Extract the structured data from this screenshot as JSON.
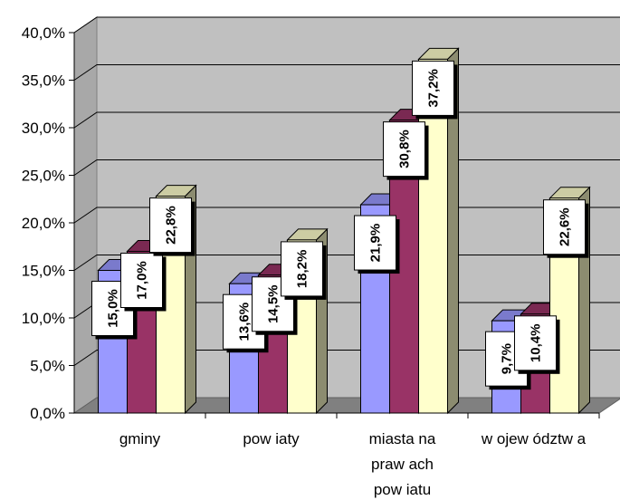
{
  "chart_data": {
    "type": "bar",
    "style": "3d-clustered-column",
    "categories": [
      [
        "gminy"
      ],
      [
        "pow iaty"
      ],
      [
        "miasta na",
        "praw ach",
        "pow iatu"
      ],
      [
        "w ojew ództw a"
      ]
    ],
    "series": [
      {
        "color": "#9999ff",
        "values": [
          15.0,
          13.6,
          21.9,
          9.7
        ]
      },
      {
        "color": "#993366",
        "values": [
          17.0,
          14.5,
          30.8,
          10.4
        ]
      },
      {
        "color": "#ffffcc",
        "values": [
          22.8,
          18.2,
          37.2,
          22.6
        ]
      }
    ],
    "data_labels": [
      [
        "15,0%",
        "13,6%",
        "21,9%",
        "9,7%"
      ],
      [
        "17,0%",
        "14,5%",
        "30,8%",
        "10,4%"
      ],
      [
        "22,8%",
        "18,2%",
        "37,2%",
        "22,6%"
      ]
    ],
    "y_ticks": [
      "0,0%",
      "5,0%",
      "10,0%",
      "15,0%",
      "20,0%",
      "25,0%",
      "30,0%",
      "35,0%",
      "40,0%"
    ],
    "ylim": [
      0,
      40
    ],
    "grid": true,
    "legend": "none",
    "wall_color": "#c0c0c0"
  }
}
